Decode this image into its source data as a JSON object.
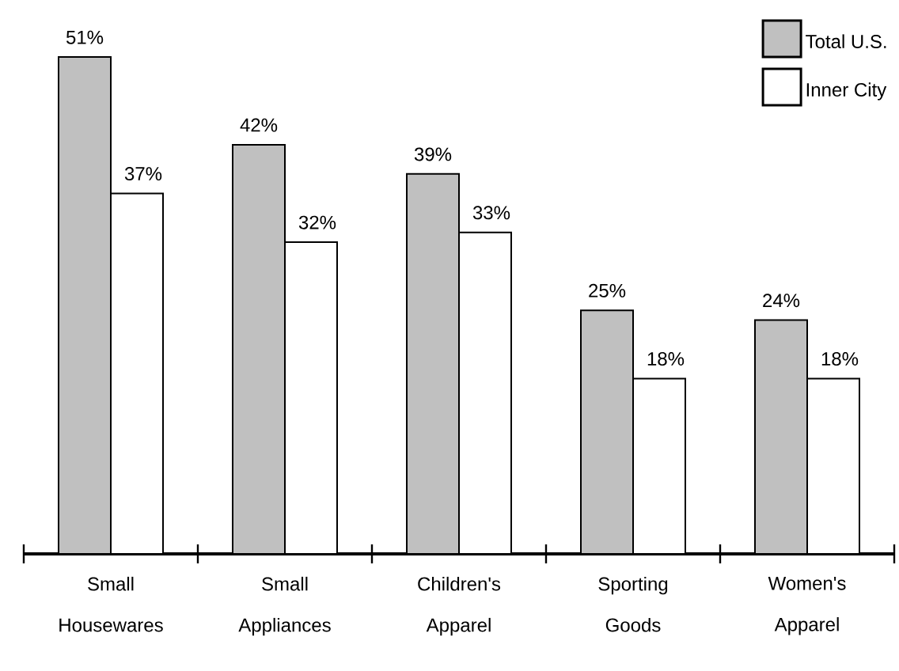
{
  "chart_data": {
    "type": "bar",
    "categories": [
      "Small Housewares",
      "Small Appliances",
      "Children's Apparel",
      "Sporting Goods",
      "Women's Apparel"
    ],
    "series": [
      {
        "name": "Total U.S.",
        "color": "#c0c0c0",
        "values": [
          51,
          42,
          39,
          25,
          24
        ],
        "value_labels": [
          "51%",
          "42%",
          "39%",
          "25%",
          "24%"
        ]
      },
      {
        "name": "Inner City",
        "color": "#ffffff",
        "values": [
          37,
          32,
          33,
          18,
          18
        ],
        "value_labels": [
          "37%",
          "32%",
          "33%",
          "18%",
          "18%"
        ]
      }
    ],
    "legend": "top right",
    "grid": false
  }
}
